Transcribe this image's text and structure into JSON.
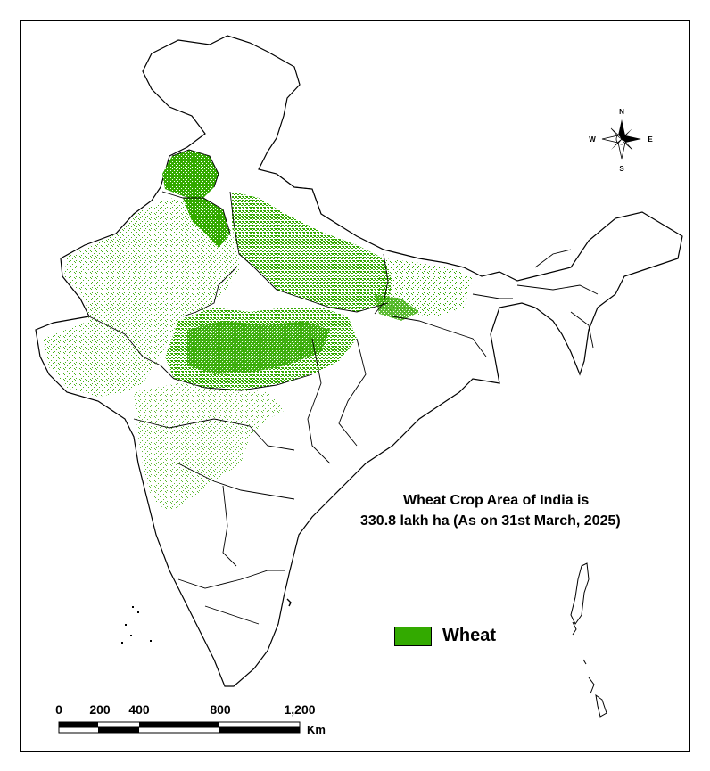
{
  "title": {
    "line1": "Wheat Crop Area of India is",
    "line2": "330.8 lakh ha (As on 31st March, 2025)"
  },
  "legend": {
    "label": "Wheat",
    "color": "#33aa00"
  },
  "scale_bar": {
    "ticks": [
      "0",
      "200",
      "400",
      "800",
      "1,200"
    ],
    "unit": "Km"
  },
  "compass": {
    "north": "N",
    "south": "S",
    "east": "E",
    "west": "W"
  },
  "colors": {
    "wheat": "#33aa00",
    "boundary": "#000000",
    "background": "#ffffff"
  }
}
